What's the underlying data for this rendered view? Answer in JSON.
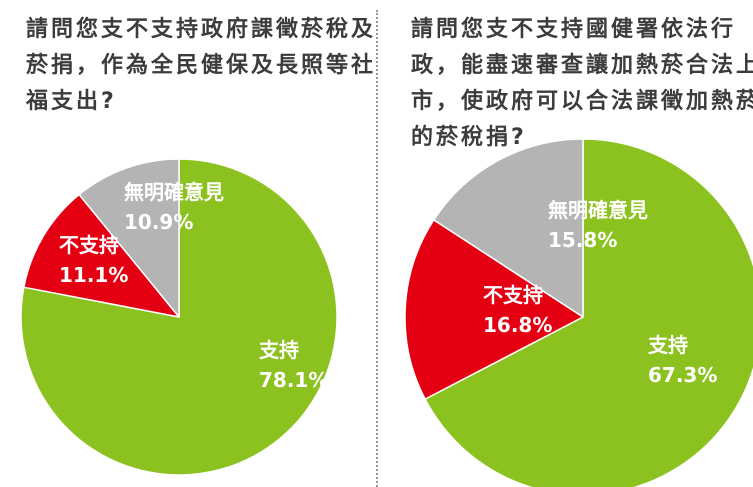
{
  "colors": {
    "support": "#8cc21f",
    "oppose": "#e40012",
    "no_opinion": "#b4b4b4",
    "separator": "#ffffff"
  },
  "chart_data": [
    {
      "type": "pie",
      "title": "請問您支不支持政府課徵菸稅及菸捐，作為全民健保及長照等社福支出?",
      "slices": [
        {
          "label": "支持",
          "value": 78.1,
          "value_text": "78.1%",
          "color_key": "support"
        },
        {
          "label": "不支持",
          "value": 11.1,
          "value_text": "11.1%",
          "color_key": "oppose"
        },
        {
          "label": "無明確意見",
          "value": 10.9,
          "value_text": "10.9%",
          "color_key": "no_opinion"
        }
      ],
      "start": "top",
      "direction": "clockwise"
    },
    {
      "type": "pie",
      "title": "請問您支不支持國健署依法行政，能盡速審查讓加熱菸合法上市，使政府可以合法課徵加熱菸的菸稅捐?",
      "slices": [
        {
          "label": "支持",
          "value": 67.3,
          "value_text": "67.3%",
          "color_key": "support"
        },
        {
          "label": "不支持",
          "value": 16.8,
          "value_text": "16.8%",
          "color_key": "oppose"
        },
        {
          "label": "無明確意見",
          "value": 15.8,
          "value_text": "15.8%",
          "color_key": "no_opinion"
        }
      ],
      "start": "top",
      "direction": "clockwise"
    }
  ]
}
